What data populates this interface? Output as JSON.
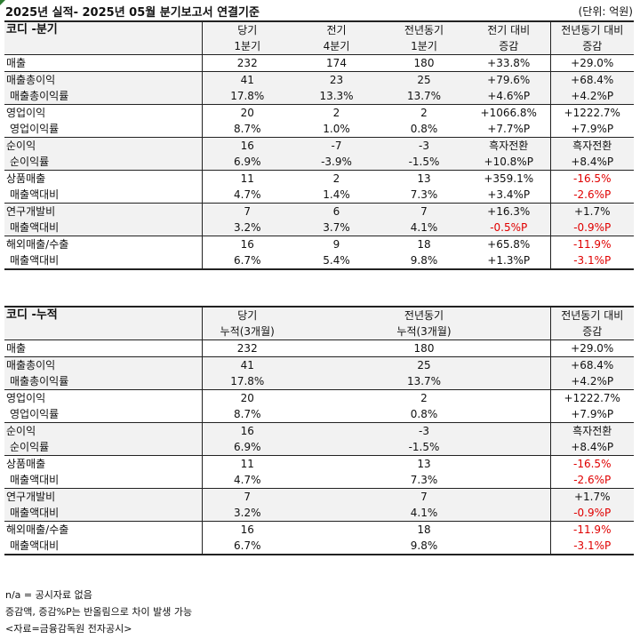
{
  "header": {
    "title": "2025년 실적- 2025년 05월 분기보고서 연결기준",
    "unit": "(단위: 억원)"
  },
  "quarter": {
    "name": "코디 -분기",
    "col1": [
      "당기",
      "1분기"
    ],
    "col2": [
      "전기",
      "4분기"
    ],
    "col3": [
      "전년동기",
      "1분기"
    ],
    "col4": [
      "전기 대비",
      "증감"
    ],
    "col5": [
      "전년동기 대비",
      "증감"
    ],
    "rows": [
      {
        "label": "매출",
        "v": [
          "232",
          "174",
          "180",
          "+33.8%",
          "+29.0%"
        ],
        "neg": [
          false,
          false
        ]
      },
      {
        "label": "매출총이익",
        "v": [
          "41",
          "23",
          "25",
          "+79.6%",
          "+68.4%"
        ],
        "neg": [
          false,
          false
        ]
      },
      {
        "label": "매출총이익률",
        "sub": true,
        "v": [
          "17.8%",
          "13.3%",
          "13.7%",
          "+4.6%P",
          "+4.2%P"
        ],
        "neg": [
          false,
          false
        ]
      },
      {
        "label": "영업이익",
        "v": [
          "20",
          "2",
          "2",
          "+1066.8%",
          "+1222.7%"
        ],
        "neg": [
          false,
          false
        ]
      },
      {
        "label": "영업이익률",
        "sub": true,
        "v": [
          "8.7%",
          "1.0%",
          "0.8%",
          "+7.7%P",
          "+7.9%P"
        ],
        "neg": [
          false,
          false
        ]
      },
      {
        "label": "순이익",
        "v": [
          "16",
          "-7",
          "-3",
          "흑자전환",
          "흑자전환"
        ],
        "neg": [
          false,
          false
        ]
      },
      {
        "label": "순이익률",
        "sub": true,
        "v": [
          "6.9%",
          "-3.9%",
          "-1.5%",
          "+10.8%P",
          "+8.4%P"
        ],
        "neg": [
          false,
          false
        ]
      },
      {
        "label": "상품매출",
        "v": [
          "11",
          "2",
          "13",
          "+359.1%",
          "-16.5%"
        ],
        "neg": [
          false,
          true
        ]
      },
      {
        "label": "매출액대비",
        "sub": true,
        "v": [
          "4.7%",
          "1.4%",
          "7.3%",
          "+3.4%P",
          "-2.6%P"
        ],
        "neg": [
          false,
          true
        ]
      },
      {
        "label": "연구개발비",
        "v": [
          "7",
          "6",
          "7",
          "+16.3%",
          "+1.7%"
        ],
        "neg": [
          false,
          false
        ]
      },
      {
        "label": "매출액대비",
        "sub": true,
        "v": [
          "3.2%",
          "3.7%",
          "4.1%",
          "-0.5%P",
          "-0.9%P"
        ],
        "neg": [
          true,
          true
        ]
      },
      {
        "label": "해외매출/수출",
        "v": [
          "16",
          "9",
          "18",
          "+65.8%",
          "-11.9%"
        ],
        "neg": [
          false,
          true
        ]
      },
      {
        "label": "매출액대비",
        "sub": true,
        "v": [
          "6.7%",
          "5.4%",
          "9.8%",
          "+1.3%P",
          "-3.1%P"
        ],
        "neg": [
          false,
          true
        ]
      }
    ]
  },
  "cumulative": {
    "name": "코디 -누적",
    "col1": [
      "당기",
      "누적(3개월)"
    ],
    "col3": [
      "전년동기",
      "누적(3개월)"
    ],
    "col5": [
      "전년동기 대비",
      "증감"
    ],
    "rows": [
      {
        "label": "매출",
        "v": [
          "232",
          "180",
          "+29.0%"
        ],
        "neg": false
      },
      {
        "label": "매출총이익",
        "v": [
          "41",
          "25",
          "+68.4%"
        ],
        "neg": false
      },
      {
        "label": "매출총이익률",
        "sub": true,
        "v": [
          "17.8%",
          "13.7%",
          "+4.2%P"
        ],
        "neg": false
      },
      {
        "label": "영업이익",
        "v": [
          "20",
          "2",
          "+1222.7%"
        ],
        "neg": false
      },
      {
        "label": "영업이익률",
        "sub": true,
        "v": [
          "8.7%",
          "0.8%",
          "+7.9%P"
        ],
        "neg": false
      },
      {
        "label": "순이익",
        "v": [
          "16",
          "-3",
          "흑자전환"
        ],
        "neg": false
      },
      {
        "label": "순이익률",
        "sub": true,
        "v": [
          "6.9%",
          "-1.5%",
          "+8.4%P"
        ],
        "neg": false
      },
      {
        "label": "상품매출",
        "v": [
          "11",
          "13",
          "-16.5%"
        ],
        "neg": true
      },
      {
        "label": "매출액대비",
        "sub": true,
        "v": [
          "4.7%",
          "7.3%",
          "-2.6%P"
        ],
        "neg": true
      },
      {
        "label": "연구개발비",
        "v": [
          "7",
          "7",
          "+1.7%"
        ],
        "neg": false
      },
      {
        "label": "매출액대비",
        "sub": true,
        "v": [
          "3.2%",
          "4.1%",
          "-0.9%P"
        ],
        "neg": true
      },
      {
        "label": "해외매출/수출",
        "v": [
          "16",
          "18",
          "-11.9%"
        ],
        "neg": true
      },
      {
        "label": "매출액대비",
        "sub": true,
        "v": [
          "6.7%",
          "9.8%",
          "-3.1%P"
        ],
        "neg": true
      }
    ]
  },
  "notes": [
    "n/a = 공시자료 없음",
    "증감액, 증감%P는 반올림으로 차이 발생 가능",
    "<자료=금융감독원 전자공시>"
  ]
}
